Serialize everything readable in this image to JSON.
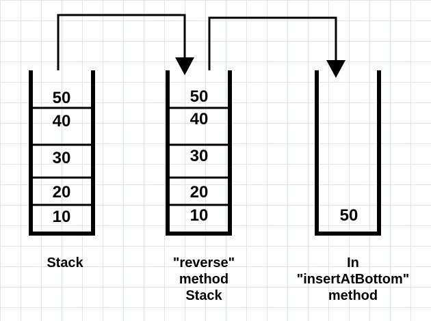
{
  "stacks": [
    {
      "caption": [
        "Stack"
      ],
      "values": [
        "50",
        "40",
        "30",
        "20",
        "10"
      ]
    },
    {
      "caption": [
        "\"reverse\"",
        "method",
        "Stack"
      ],
      "values": [
        "50",
        "40",
        "30",
        "20",
        "10"
      ]
    },
    {
      "caption": [
        "In",
        "\"insertAtBottom\"",
        "method"
      ],
      "values": [
        "50"
      ]
    }
  ]
}
